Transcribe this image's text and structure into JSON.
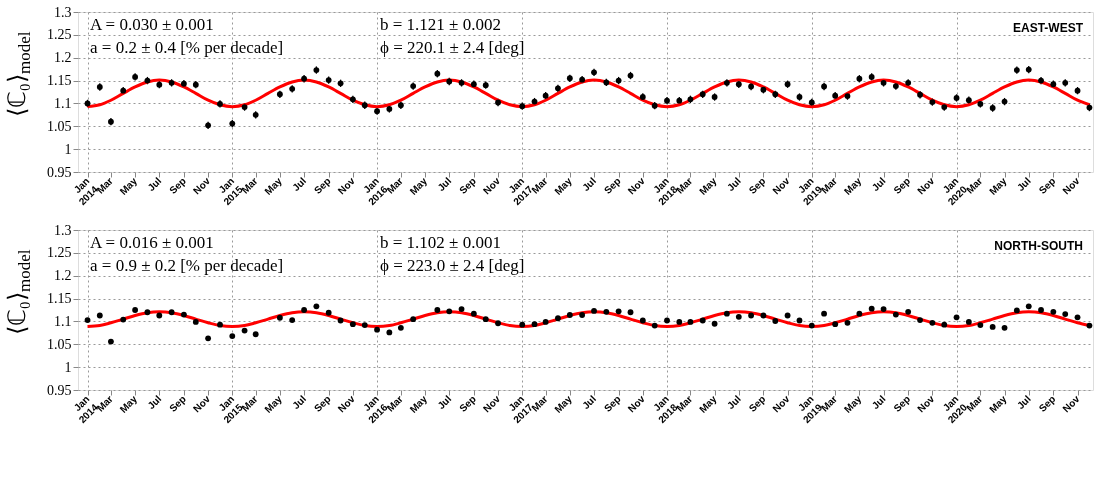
{
  "chart_data": [
    {
      "type": "scatter",
      "title": "EAST-WEST",
      "ylabel": "⟨ℂ₀⟩$_{model}$",
      "annotations": [
        "A = 0.030 ± 0.001",
        "b = 1.121 ± 0.002",
        "a = 0.2 ± 0.4 [% per decade]",
        "ϕ = 220.1 ± 2.4 [deg]"
      ],
      "x": [
        "2014-01",
        "2014-02",
        "2014-03",
        "2014-04",
        "2014-05",
        "2014-06",
        "2014-07",
        "2014-08",
        "2014-09",
        "2014-10",
        "2014-11",
        "2014-12",
        "2015-01",
        "2015-02",
        "2015-03",
        "2015-04",
        "2015-05",
        "2015-06",
        "2015-07",
        "2015-08",
        "2015-09",
        "2015-10",
        "2015-11",
        "2015-12",
        "2016-01",
        "2016-02",
        "2016-03",
        "2016-04",
        "2016-05",
        "2016-06",
        "2016-07",
        "2016-08",
        "2016-09",
        "2016-10",
        "2016-11",
        "2016-12",
        "2017-01",
        "2017-02",
        "2017-03",
        "2017-04",
        "2017-05",
        "2017-06",
        "2017-07",
        "2017-08",
        "2017-09",
        "2017-10",
        "2017-11",
        "2017-12",
        "2018-01",
        "2018-02",
        "2018-03",
        "2018-04",
        "2018-05",
        "2018-06",
        "2018-07",
        "2018-08",
        "2018-09",
        "2018-10",
        "2018-11",
        "2018-12",
        "2019-01",
        "2019-02",
        "2019-03",
        "2019-04",
        "2019-05",
        "2019-06",
        "2019-07",
        "2019-08",
        "2019-09",
        "2019-10",
        "2019-11",
        "2019-12",
        "2020-01",
        "2020-02",
        "2020-03",
        "2020-04",
        "2020-05",
        "2020-06",
        "2020-07",
        "2020-08",
        "2020-09",
        "2020-10",
        "2020-11",
        "2020-12"
      ],
      "series": [
        {
          "color": "#000000",
          "marker": "circle",
          "values": [
            1.1,
            1.136,
            1.06,
            1.128,
            1.158,
            1.15,
            1.141,
            1.145,
            1.143,
            1.141,
            1.052,
            1.099,
            1.056,
            1.092,
            1.075,
            null,
            1.12,
            1.132,
            1.154,
            1.173,
            1.151,
            1.144,
            1.109,
            1.096,
            1.083,
            1.088,
            1.096,
            1.138,
            null,
            1.165,
            1.148,
            1.145,
            1.142,
            1.14,
            1.102,
            null,
            1.094,
            1.104,
            1.117,
            1.133,
            1.155,
            1.152,
            1.168,
            1.146,
            1.15,
            1.161,
            1.114,
            1.095,
            1.106,
            1.106,
            1.109,
            1.12,
            1.114,
            1.145,
            1.142,
            1.137,
            1.13,
            1.12,
            1.142,
            1.114,
            1.102,
            1.137,
            1.117,
            1.116,
            1.154,
            1.158,
            1.145,
            1.138,
            1.145,
            1.119,
            1.103,
            1.092,
            1.112,
            1.107,
            1.099,
            1.09,
            1.104,
            1.173,
            1.174,
            1.15,
            1.142,
            1.145,
            1.128,
            1.091
          ],
          "errors": [
            0.008,
            0.008,
            0.008,
            0.008,
            0.008,
            0.008,
            0.008,
            0.008,
            0.008,
            0.008,
            0.008,
            0.008,
            0.008,
            0.008,
            0.008,
            null,
            0.008,
            0.008,
            0.008,
            0.008,
            0.008,
            0.008,
            0.008,
            0.008,
            0.008,
            0.008,
            0.008,
            0.008,
            null,
            0.008,
            0.008,
            0.008,
            0.008,
            0.008,
            0.008,
            null,
            0.008,
            0.008,
            0.008,
            0.008,
            0.008,
            0.008,
            0.008,
            0.008,
            0.008,
            0.008,
            0.008,
            0.008,
            0.008,
            0.008,
            0.008,
            0.008,
            0.008,
            0.008,
            0.008,
            0.008,
            0.008,
            0.008,
            0.008,
            0.008,
            0.008,
            0.008,
            0.008,
            0.008,
            0.008,
            0.008,
            0.008,
            0.008,
            0.008,
            0.008,
            0.008,
            0.008,
            0.008,
            0.008,
            0.008,
            0.008,
            0.008,
            0.008,
            0.008,
            0.008,
            0.008,
            0.008,
            0.008,
            0.008
          ]
        },
        {
          "type": "line",
          "color": "#ff0000",
          "values": [
            1.093,
            1.097,
            1.107,
            1.122,
            1.136,
            1.147,
            1.151,
            1.147,
            1.136,
            1.122,
            1.107,
            1.097,
            1.093,
            1.097,
            1.107,
            1.122,
            1.136,
            1.147,
            1.151,
            1.147,
            1.136,
            1.122,
            1.107,
            1.097,
            1.093,
            1.097,
            1.107,
            1.122,
            1.136,
            1.147,
            1.151,
            1.147,
            1.136,
            1.122,
            1.107,
            1.097,
            1.093,
            1.097,
            1.107,
            1.122,
            1.136,
            1.147,
            1.151,
            1.147,
            1.136,
            1.122,
            1.107,
            1.097,
            1.093,
            1.097,
            1.107,
            1.122,
            1.136,
            1.147,
            1.151,
            1.147,
            1.136,
            1.122,
            1.107,
            1.097,
            1.093,
            1.097,
            1.107,
            1.122,
            1.136,
            1.147,
            1.151,
            1.147,
            1.136,
            1.122,
            1.107,
            1.097,
            1.093,
            1.097,
            1.107,
            1.122,
            1.136,
            1.147,
            1.151,
            1.147,
            1.136,
            1.122,
            1.107,
            1.097
          ]
        }
      ],
      "xlim": [
        "2013-12-08",
        "2020-12-10"
      ],
      "xticks": [
        {
          "value": "2014-01",
          "label": "Jan\n2014"
        },
        {
          "value": "2014-03",
          "label": "Mar"
        },
        {
          "value": "2014-05",
          "label": "May"
        },
        {
          "value": "2014-07",
          "label": "Jul"
        },
        {
          "value": "2014-09",
          "label": "Sep"
        },
        {
          "value": "2014-11",
          "label": "Nov"
        },
        {
          "value": "2015-01",
          "label": "Jan\n2015"
        },
        {
          "value": "2015-03",
          "label": "Mar"
        },
        {
          "value": "2015-05",
          "label": "May"
        },
        {
          "value": "2015-07",
          "label": "Jul"
        },
        {
          "value": "2015-09",
          "label": "Sep"
        },
        {
          "value": "2015-11",
          "label": "Nov"
        },
        {
          "value": "2016-01",
          "label": "Jan\n2016"
        },
        {
          "value": "2016-03",
          "label": "Mar"
        },
        {
          "value": "2016-05",
          "label": "May"
        },
        {
          "value": "2016-07",
          "label": "Jul"
        },
        {
          "value": "2016-09",
          "label": "Sep"
        },
        {
          "value": "2016-11",
          "label": "Nov"
        },
        {
          "value": "2017-01",
          "label": "Jan\n2017"
        },
        {
          "value": "2017-03",
          "label": "Mar"
        },
        {
          "value": "2017-05",
          "label": "May"
        },
        {
          "value": "2017-07",
          "label": "Jul"
        },
        {
          "value": "2017-09",
          "label": "Sep"
        },
        {
          "value": "2017-11",
          "label": "Nov"
        },
        {
          "value": "2018-01",
          "label": "Jan\n2018"
        },
        {
          "value": "2018-03",
          "label": "Mar"
        },
        {
          "value": "2018-05",
          "label": "May"
        },
        {
          "value": "2018-07",
          "label": "Jul"
        },
        {
          "value": "2018-09",
          "label": "Sep"
        },
        {
          "value": "2018-11",
          "label": "Nov"
        },
        {
          "value": "2019-01",
          "label": "Jan\n2019"
        },
        {
          "value": "2019-03",
          "label": "Mar"
        },
        {
          "value": "2019-05",
          "label": "May"
        },
        {
          "value": "2019-07",
          "label": "Jul"
        },
        {
          "value": "2019-09",
          "label": "Sep"
        },
        {
          "value": "2019-11",
          "label": "Nov"
        },
        {
          "value": "2020-01",
          "label": "Jan\n2020"
        },
        {
          "value": "2020-03",
          "label": "Mar"
        },
        {
          "value": "2020-05",
          "label": "May"
        },
        {
          "value": "2020-07",
          "label": "Jul"
        },
        {
          "value": "2020-09",
          "label": "Sep"
        },
        {
          "value": "2020-11",
          "label": "Nov"
        }
      ],
      "ylim": [
        0.95,
        1.3
      ],
      "yticks": [
        0.95,
        1,
        1.05,
        1.1,
        1.15,
        1.2,
        1.25,
        1.3
      ],
      "grid": true
    },
    {
      "type": "scatter",
      "title": "NORTH-SOUTH",
      "ylabel": "⟨ℂ₀⟩$_{model}$",
      "annotations": [
        "A = 0.016 ± 0.001",
        "b = 1.102 ± 0.001",
        "a = 0.9 ± 0.2 [% per decade]",
        "ϕ = 223.0 ± 2.4 [deg]"
      ],
      "x": [
        "2014-01",
        "2014-02",
        "2014-03",
        "2014-04",
        "2014-05",
        "2014-06",
        "2014-07",
        "2014-08",
        "2014-09",
        "2014-10",
        "2014-11",
        "2014-12",
        "2015-01",
        "2015-02",
        "2015-03",
        "2015-04",
        "2015-05",
        "2015-06",
        "2015-07",
        "2015-08",
        "2015-09",
        "2015-10",
        "2015-11",
        "2015-12",
        "2016-01",
        "2016-02",
        "2016-03",
        "2016-04",
        "2016-05",
        "2016-06",
        "2016-07",
        "2016-08",
        "2016-09",
        "2016-10",
        "2016-11",
        "2016-12",
        "2017-01",
        "2017-02",
        "2017-03",
        "2017-04",
        "2017-05",
        "2017-06",
        "2017-07",
        "2017-08",
        "2017-09",
        "2017-10",
        "2017-11",
        "2017-12",
        "2018-01",
        "2018-02",
        "2018-03",
        "2018-04",
        "2018-05",
        "2018-06",
        "2018-07",
        "2018-08",
        "2018-09",
        "2018-10",
        "2018-11",
        "2018-12",
        "2019-01",
        "2019-02",
        "2019-03",
        "2019-04",
        "2019-05",
        "2019-06",
        "2019-07",
        "2019-08",
        "2019-09",
        "2019-10",
        "2019-11",
        "2019-12",
        "2020-01",
        "2020-02",
        "2020-03",
        "2020-04",
        "2020-05",
        "2020-06",
        "2020-07",
        "2020-08",
        "2020-09",
        "2020-10",
        "2020-11",
        "2020-12"
      ],
      "series": [
        {
          "color": "#000000",
          "marker": "circle",
          "values": [
            1.103,
            1.113,
            1.056,
            1.104,
            1.125,
            1.12,
            1.113,
            1.12,
            1.115,
            1.099,
            1.063,
            1.093,
            1.068,
            1.08,
            1.072,
            null,
            1.108,
            1.103,
            1.125,
            1.133,
            1.119,
            1.102,
            1.094,
            1.092,
            1.082,
            1.076,
            1.086,
            1.105,
            null,
            1.125,
            1.122,
            1.127,
            1.117,
            1.105,
            1.096,
            null,
            1.093,
            1.094,
            1.099,
            1.107,
            1.114,
            1.114,
            1.123,
            1.121,
            1.122,
            1.12,
            1.102,
            1.091,
            1.102,
            1.099,
            1.099,
            1.102,
            1.095,
            1.117,
            1.11,
            1.113,
            1.113,
            1.101,
            1.113,
            1.102,
            1.091,
            1.117,
            1.094,
            1.097,
            1.117,
            1.128,
            1.127,
            1.115,
            1.121,
            1.103,
            1.097,
            1.093,
            1.109,
            1.099,
            1.092,
            1.088,
            1.086,
            1.124,
            1.133,
            1.125,
            1.121,
            1.116,
            1.109,
            1.091
          ],
          "errors": [
            0.003,
            0.003,
            0.005,
            0.003,
            0.003,
            0.003,
            0.003,
            0.003,
            0.003,
            0.003,
            0.003,
            0.003,
            0.003,
            0.003,
            0.004,
            null,
            0.003,
            0.003,
            0.003,
            0.003,
            0.003,
            0.003,
            0.003,
            0.003,
            0.003,
            0.003,
            0.003,
            0.003,
            null,
            0.003,
            0.003,
            0.003,
            0.003,
            0.003,
            0.003,
            null,
            0.003,
            0.003,
            0.003,
            0.003,
            0.003,
            0.003,
            0.003,
            0.003,
            0.003,
            0.003,
            0.003,
            0.003,
            0.003,
            0.003,
            0.003,
            0.003,
            0.003,
            0.003,
            0.003,
            0.003,
            0.003,
            0.003,
            0.003,
            0.003,
            0.003,
            0.003,
            0.003,
            0.003,
            0.003,
            0.003,
            0.003,
            0.003,
            0.003,
            0.003,
            0.003,
            0.003,
            0.003,
            0.003,
            0.003,
            0.003,
            0.003,
            0.003,
            0.003,
            0.003,
            0.003,
            0.003,
            0.003,
            0.003
          ]
        },
        {
          "type": "line",
          "color": "#ff0000",
          "values": [
            1.089,
            1.091,
            1.097,
            1.105,
            1.113,
            1.119,
            1.121,
            1.119,
            1.113,
            1.105,
            1.097,
            1.091,
            1.089,
            1.091,
            1.097,
            1.105,
            1.113,
            1.119,
            1.121,
            1.119,
            1.113,
            1.105,
            1.097,
            1.091,
            1.089,
            1.091,
            1.097,
            1.105,
            1.113,
            1.119,
            1.121,
            1.119,
            1.113,
            1.105,
            1.097,
            1.091,
            1.089,
            1.091,
            1.097,
            1.105,
            1.113,
            1.119,
            1.121,
            1.119,
            1.113,
            1.105,
            1.097,
            1.091,
            1.089,
            1.091,
            1.097,
            1.105,
            1.113,
            1.119,
            1.121,
            1.119,
            1.113,
            1.105,
            1.097,
            1.091,
            1.089,
            1.091,
            1.097,
            1.105,
            1.113,
            1.119,
            1.121,
            1.119,
            1.113,
            1.105,
            1.097,
            1.091,
            1.089,
            1.091,
            1.097,
            1.105,
            1.113,
            1.119,
            1.121,
            1.119,
            1.113,
            1.105,
            1.097,
            1.091
          ]
        }
      ],
      "xlim": [
        "2013-12-08",
        "2020-12-10"
      ],
      "xticks": [
        {
          "value": "2014-01",
          "label": "Jan\n2014"
        },
        {
          "value": "2014-03",
          "label": "Mar"
        },
        {
          "value": "2014-05",
          "label": "May"
        },
        {
          "value": "2014-07",
          "label": "Jul"
        },
        {
          "value": "2014-09",
          "label": "Sep"
        },
        {
          "value": "2014-11",
          "label": "Nov"
        },
        {
          "value": "2015-01",
          "label": "Jan\n2015"
        },
        {
          "value": "2015-03",
          "label": "Mar"
        },
        {
          "value": "2015-05",
          "label": "May"
        },
        {
          "value": "2015-07",
          "label": "Jul"
        },
        {
          "value": "2015-09",
          "label": "Sep"
        },
        {
          "value": "2015-11",
          "label": "Nov"
        },
        {
          "value": "2016-01",
          "label": "Jan\n2016"
        },
        {
          "value": "2016-03",
          "label": "Mar"
        },
        {
          "value": "2016-05",
          "label": "May"
        },
        {
          "value": "2016-07",
          "label": "Jul"
        },
        {
          "value": "2016-09",
          "label": "Sep"
        },
        {
          "value": "2016-11",
          "label": "Nov"
        },
        {
          "value": "2017-01",
          "label": "Jan\n2017"
        },
        {
          "value": "2017-03",
          "label": "Mar"
        },
        {
          "value": "2017-05",
          "label": "May"
        },
        {
          "value": "2017-07",
          "label": "Jul"
        },
        {
          "value": "2017-09",
          "label": "Sep"
        },
        {
          "value": "2017-11",
          "label": "Nov"
        },
        {
          "value": "2018-01",
          "label": "Jan\n2018"
        },
        {
          "value": "2018-03",
          "label": "Mar"
        },
        {
          "value": "2018-05",
          "label": "May"
        },
        {
          "value": "2018-07",
          "label": "Jul"
        },
        {
          "value": "2018-09",
          "label": "Sep"
        },
        {
          "value": "2018-11",
          "label": "Nov"
        },
        {
          "value": "2019-01",
          "label": "Jan\n2019"
        },
        {
          "value": "2019-03",
          "label": "Mar"
        },
        {
          "value": "2019-05",
          "label": "May"
        },
        {
          "value": "2019-07",
          "label": "Jul"
        },
        {
          "value": "2019-09",
          "label": "Sep"
        },
        {
          "value": "2019-11",
          "label": "Nov"
        },
        {
          "value": "2020-01",
          "label": "Jan\n2020"
        },
        {
          "value": "2020-03",
          "label": "Mar"
        },
        {
          "value": "2020-05",
          "label": "May"
        },
        {
          "value": "2020-07",
          "label": "Jul"
        },
        {
          "value": "2020-09",
          "label": "Sep"
        },
        {
          "value": "2020-11",
          "label": "Nov"
        }
      ],
      "ylim": [
        0.95,
        1.3
      ],
      "yticks": [
        0.95,
        1,
        1.05,
        1.1,
        1.15,
        1.2,
        1.25,
        1.3
      ],
      "grid": true
    }
  ]
}
